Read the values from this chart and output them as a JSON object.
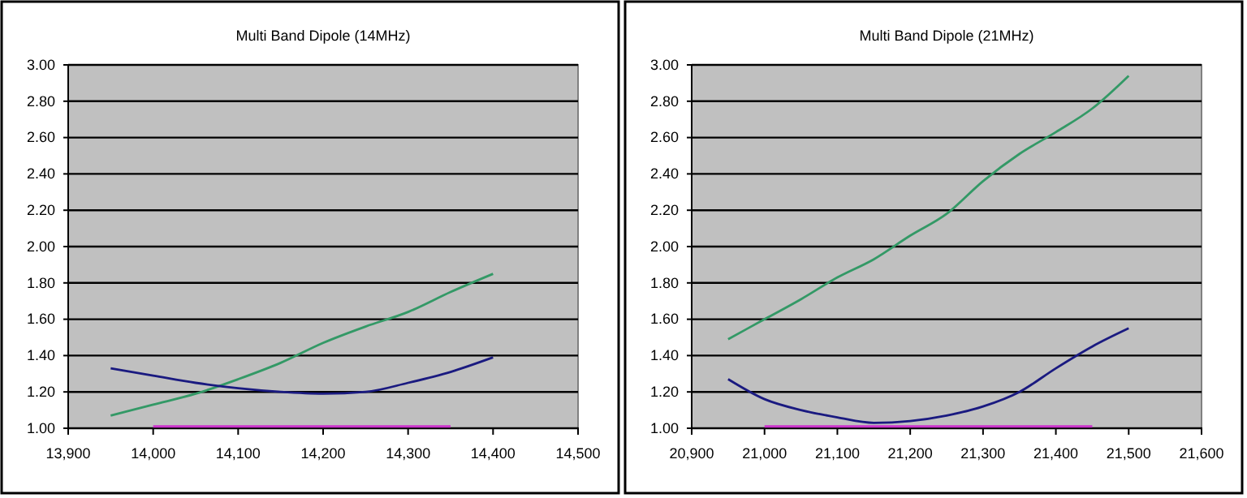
{
  "chart_data": [
    {
      "type": "line",
      "title": "Multi Band Dipole (14MHz)",
      "grid": "y",
      "legend": false,
      "marker": "none",
      "line_style": "solid",
      "xlim": [
        13900,
        14500
      ],
      "xticks": [
        {
          "value": 13900,
          "label": "13,900"
        },
        {
          "value": 14000,
          "label": "14,000"
        },
        {
          "value": 14100,
          "label": "14,100"
        },
        {
          "value": 14200,
          "label": "14,200"
        },
        {
          "value": 14300,
          "label": "14,300"
        },
        {
          "value": 14400,
          "label": "14,400"
        },
        {
          "value": 14500,
          "label": "14,500"
        }
      ],
      "ylim": [
        1,
        3
      ],
      "yticks": [
        {
          "value": 1,
          "label": "1.00"
        },
        {
          "value": 1.2,
          "label": "1.20"
        },
        {
          "value": 1.4,
          "label": "1.40"
        },
        {
          "value": 1.6,
          "label": "1.60"
        },
        {
          "value": 1.8,
          "label": "1.80"
        },
        {
          "value": 2,
          "label": "2.00"
        },
        {
          "value": 2.2,
          "label": "2.20"
        },
        {
          "value": 2.4,
          "label": "2.40"
        },
        {
          "value": 2.6,
          "label": "2.60"
        },
        {
          "value": 2.8,
          "label": "2.80"
        },
        {
          "value": 3,
          "label": "3.00"
        }
      ],
      "series": [
        {
          "color": "#339966",
          "x": [
            13950,
            14000,
            14050,
            14100,
            14150,
            14200,
            14250,
            14300,
            14350,
            14400
          ],
          "values": [
            1.07,
            1.13,
            1.19,
            1.27,
            1.36,
            1.47,
            1.56,
            1.64,
            1.75,
            1.85
          ]
        },
        {
          "color": "#1a1a80",
          "x": [
            13950,
            14000,
            14050,
            14100,
            14150,
            14200,
            14250,
            14300,
            14350,
            14400
          ],
          "values": [
            1.33,
            1.29,
            1.25,
            1.22,
            1.2,
            1.19,
            1.2,
            1.25,
            1.31,
            1.39
          ]
        },
        {
          "color": "#cc33cc",
          "x": [
            14000,
            14050,
            14100,
            14150,
            14200,
            14250,
            14300,
            14350
          ],
          "values": [
            1.01,
            1.01,
            1.01,
            1.01,
            1.01,
            1.01,
            1.01,
            1.01
          ]
        }
      ]
    },
    {
      "type": "line",
      "title": "Multi Band Dipole (21MHz)",
      "grid": "y",
      "legend": false,
      "marker": "none",
      "line_style": "solid",
      "xlim": [
        20900,
        21600
      ],
      "xticks": [
        {
          "value": 20900,
          "label": "20,900"
        },
        {
          "value": 21000,
          "label": "21,000"
        },
        {
          "value": 21100,
          "label": "21,100"
        },
        {
          "value": 21200,
          "label": "21,200"
        },
        {
          "value": 21300,
          "label": "21,300"
        },
        {
          "value": 21400,
          "label": "21,400"
        },
        {
          "value": 21500,
          "label": "21,500"
        },
        {
          "value": 21600,
          "label": "21,600"
        }
      ],
      "ylim": [
        1,
        3
      ],
      "yticks": [
        {
          "value": 1,
          "label": "1.00"
        },
        {
          "value": 1.2,
          "label": "1.20"
        },
        {
          "value": 1.4,
          "label": "1.40"
        },
        {
          "value": 1.6,
          "label": "1.60"
        },
        {
          "value": 1.8,
          "label": "1.80"
        },
        {
          "value": 2,
          "label": "2.00"
        },
        {
          "value": 2.2,
          "label": "2.20"
        },
        {
          "value": 2.4,
          "label": "2.40"
        },
        {
          "value": 2.6,
          "label": "2.60"
        },
        {
          "value": 2.8,
          "label": "2.80"
        },
        {
          "value": 3,
          "label": "3.00"
        }
      ],
      "series": [
        {
          "color": "#339966",
          "x": [
            20950,
            21000,
            21050,
            21100,
            21150,
            21200,
            21250,
            21300,
            21350,
            21400,
            21450,
            21500
          ],
          "values": [
            1.49,
            1.6,
            1.71,
            1.83,
            1.93,
            2.06,
            2.18,
            2.36,
            2.51,
            2.63,
            2.76,
            2.94
          ]
        },
        {
          "color": "#1a1a80",
          "x": [
            20950,
            21000,
            21050,
            21100,
            21150,
            21200,
            21250,
            21300,
            21350,
            21400,
            21450,
            21500
          ],
          "values": [
            1.27,
            1.16,
            1.1,
            1.06,
            1.03,
            1.04,
            1.07,
            1.12,
            1.2,
            1.33,
            1.45,
            1.55
          ]
        },
        {
          "color": "#cc33cc",
          "x": [
            21000,
            21050,
            21100,
            21150,
            21200,
            21250,
            21300,
            21350,
            21400,
            21450
          ],
          "values": [
            1.01,
            1.01,
            1.01,
            1.01,
            1.01,
            1.01,
            1.01,
            1.01,
            1.01,
            1.01
          ]
        }
      ]
    }
  ]
}
